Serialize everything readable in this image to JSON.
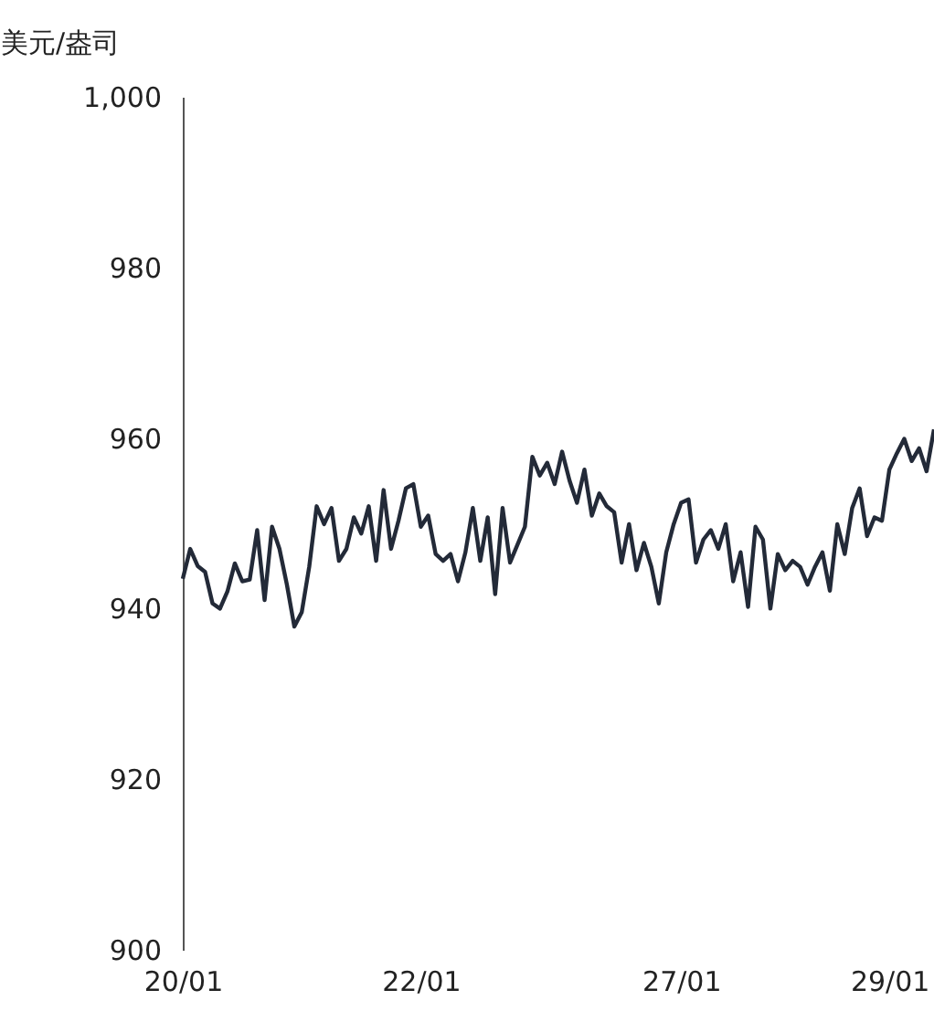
{
  "chart_data": {
    "type": "line",
    "ylabel": "美元/盎司",
    "categories": [
      "20/01",
      null,
      null,
      null,
      null,
      null,
      null,
      null,
      null,
      null,
      null,
      null,
      null,
      null,
      null,
      null,
      null,
      null,
      null,
      null,
      null,
      null,
      null,
      null,
      null,
      null,
      null,
      null,
      null,
      null,
      null,
      null,
      "22/01",
      null,
      null,
      null,
      null,
      null,
      null,
      null,
      null,
      null,
      null,
      null,
      null,
      null,
      null,
      null,
      null,
      null,
      null,
      null,
      null,
      null,
      null,
      null,
      null,
      null,
      null,
      null,
      null,
      null,
      null,
      null,
      null,
      null,
      null,
      "27/01",
      null,
      null,
      null,
      null,
      null,
      null,
      null,
      null,
      null,
      null,
      null,
      null,
      null,
      null,
      null,
      null,
      null,
      null,
      null,
      null,
      null,
      null,
      null,
      null,
      null,
      null,
      null,
      "29/01",
      null,
      null,
      null,
      null,
      null,
      null
    ],
    "series": [
      {
        "color": "#232a38",
        "values": [
          943.5,
          947,
          945,
          944.3,
          940.6,
          940,
          942,
          945.3,
          943.2,
          943.4,
          949.2,
          941,
          949.6,
          947,
          942.8,
          937.9,
          939.6,
          944.9,
          952,
          949.9,
          951.8,
          945.6,
          947,
          950.7,
          948.8,
          952,
          945.6,
          953.9,
          947,
          950.3,
          954.1,
          954.6,
          949.6,
          950.9,
          946.4,
          945.6,
          946.4,
          943.2,
          946.6,
          951.8,
          945.6,
          950.7,
          941.7,
          951.8,
          945.4,
          947.5,
          949.6,
          957.8,
          955.6,
          957.1,
          954.6,
          958.4,
          955,
          952.4,
          956.3,
          950.9,
          953.5,
          952,
          951.3,
          945.4,
          949.9,
          944.5,
          947.7,
          944.9,
          940.6,
          946.6,
          949.9,
          952.4,
          952.8,
          945.4,
          948.1,
          949.2,
          947,
          949.9,
          943.2,
          946.6,
          940.2,
          949.6,
          948.1,
          940,
          946.4,
          944.5,
          945.6,
          944.9,
          942.8,
          944.9,
          946.6,
          942.1,
          949.9,
          946.4,
          951.8,
          954.1,
          948.5,
          950.7,
          950.3,
          956.3,
          958.2,
          959.9,
          957.3,
          958.8,
          956.1,
          961
        ]
      }
    ],
    "ylim": [
      900,
      1000
    ],
    "yticks": [
      {
        "value": 900,
        "label": "900"
      },
      {
        "value": 920,
        "label": "920"
      },
      {
        "value": 940,
        "label": "940"
      },
      {
        "value": 960,
        "label": "960"
      },
      {
        "value": 980,
        "label": "980"
      },
      {
        "value": 1000,
        "label": "1,000"
      }
    ],
    "grid": false,
    "line_style": "solid",
    "marker": "none"
  }
}
